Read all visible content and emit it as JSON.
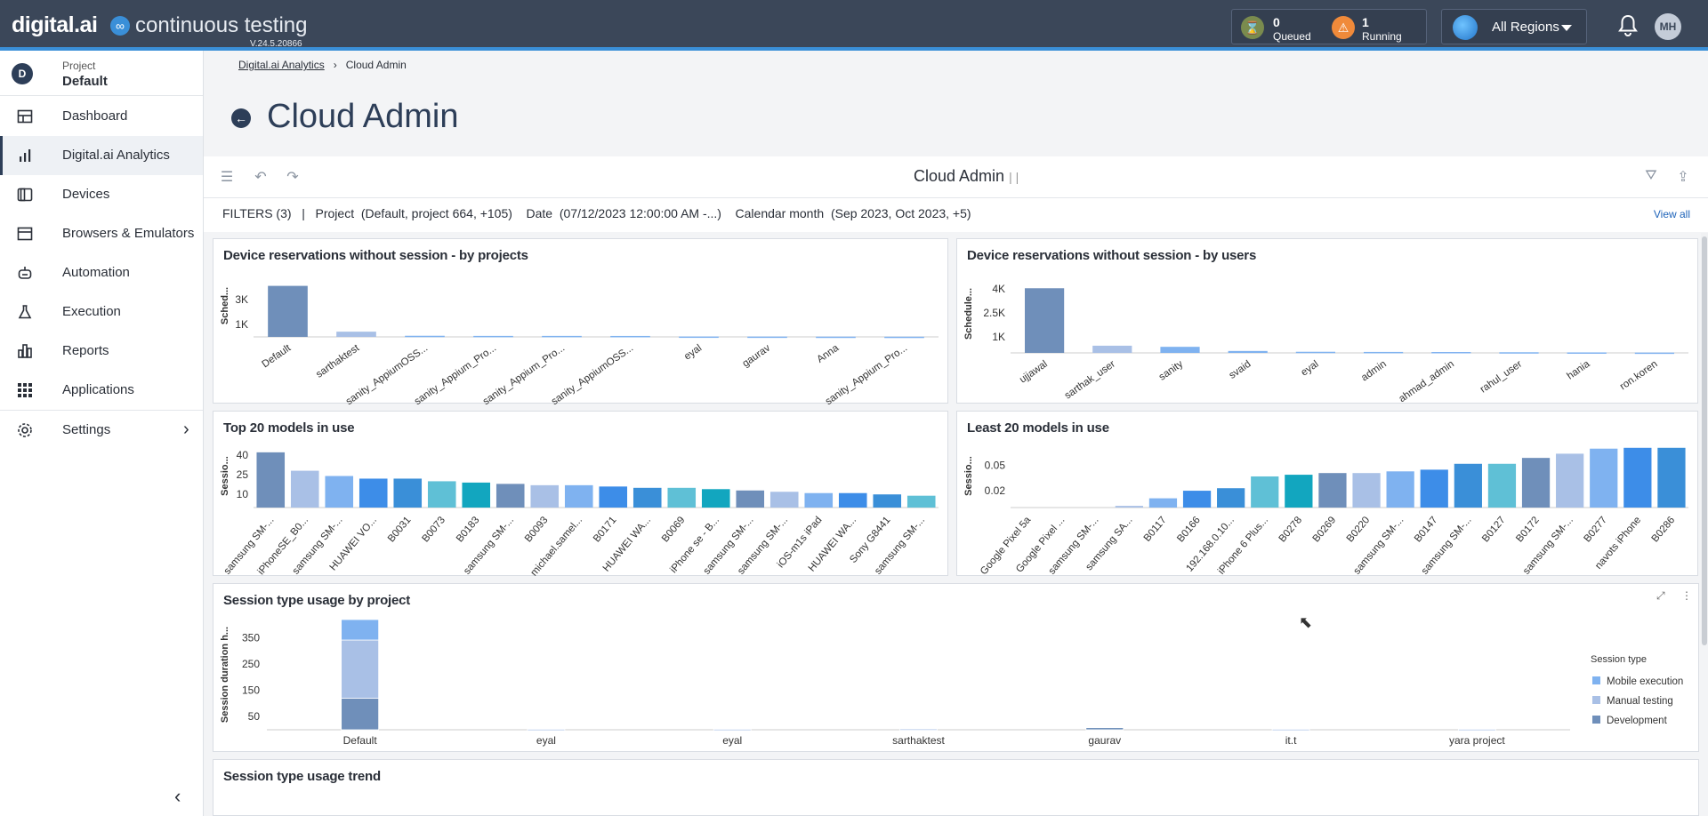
{
  "app": {
    "brand": "digital.ai",
    "product": "continuous testing",
    "version": "V.24.5.20866",
    "queued": {
      "count": "0",
      "label": "Queued"
    },
    "running": {
      "count": "1",
      "label": "Running"
    },
    "region": "All Regions",
    "user_initials": "MH",
    "accent": "#3a8fd8",
    "topbar_color": "#3b4759"
  },
  "sidebar": {
    "project_label": "Project",
    "project_value": "Default",
    "project_badge": "D",
    "items": [
      {
        "label": "Dashboard",
        "icon": "dashboard-icon"
      },
      {
        "label": "Digital.ai Analytics",
        "icon": "bar-chart-icon"
      },
      {
        "label": "Devices",
        "icon": "devices-icon"
      },
      {
        "label": "Browsers & Emulators",
        "icon": "browser-icon"
      },
      {
        "label": "Automation",
        "icon": "robot-icon"
      },
      {
        "label": "Execution",
        "icon": "flask-icon"
      },
      {
        "label": "Reports",
        "icon": "reports-icon"
      },
      {
        "label": "Applications",
        "icon": "grid-icon"
      },
      {
        "label": "Settings",
        "icon": "gear-icon"
      }
    ]
  },
  "breadcrumb": {
    "root": "Digital.ai Analytics",
    "current": "Cloud Admin"
  },
  "page_title": "Cloud Admin",
  "dashboard": {
    "title": "Cloud Admin",
    "title_suffix": "| |",
    "filters": {
      "label": "FILTERS (3)",
      "sep": "|",
      "project_key": "Project",
      "project_val": "(Default, project 664, +105)",
      "date_key": "Date",
      "date_val": "(07/12/2023 12:00:00 AM -...)",
      "cal_key": "Calendar month",
      "cal_val": "(Sep 2023, Oct 2023, +5)",
      "view_all": "View all"
    }
  },
  "chart_data": [
    {
      "type": "bar",
      "title": "Device reservations without session - by projects",
      "ylabel": "Sched...",
      "yticks": [
        "1K",
        "3K"
      ],
      "ylim": [
        0,
        5000
      ],
      "categories": [
        "Default",
        "sarthaktest",
        "sanity_AppiumOSS...",
        "sanity_Appium_Pro...",
        "sanity_Appium_Pro...",
        "sanity_AppiumOSS...",
        "eyal",
        "gaurav",
        "Anna",
        "sanity_Appium_Pro..."
      ],
      "values": [
        4100,
        420,
        90,
        80,
        80,
        75,
        30,
        25,
        20,
        15
      ]
    },
    {
      "type": "bar",
      "title": "Device reservations without session - by users",
      "ylabel": "Schedule...",
      "yticks": [
        "1K",
        "2.5K",
        "4K"
      ],
      "ylim": [
        0,
        4900
      ],
      "categories": [
        "ujjawal",
        "sarthak_user",
        "sanity",
        "svaid",
        "eyal",
        "admin",
        "ahmad_admin",
        "rahul_user",
        "hania",
        "ron.koren"
      ],
      "values": [
        4050,
        450,
        380,
        120,
        70,
        60,
        55,
        40,
        30,
        20
      ]
    },
    {
      "type": "bar",
      "title": "Top 20 models in use",
      "ylabel": "Sessio...",
      "yticks": [
        "10",
        "25",
        "40"
      ],
      "ylim": [
        0,
        48
      ],
      "categories": [
        "samsung SM-...",
        "iPhoneSE_B0...",
        "samsung SM-...",
        "HUAWEI VO...",
        "B0031",
        "B0073",
        "B0183",
        "samsung SM-...",
        "B0093",
        "michael.samel...",
        "B0171",
        "HUAWEI WA...",
        "B0069",
        "iPhone se - B...",
        "samsung SM-...",
        "samsung SM-...",
        "iOS-m1s iPad",
        "HUAWEI WA...",
        "Sony G8441",
        "samsung SM-..."
      ],
      "values": [
        42,
        28,
        24,
        22,
        22,
        20,
        19,
        18,
        17,
        17,
        16,
        15,
        15,
        14,
        13,
        12,
        11,
        11,
        10,
        9
      ]
    },
    {
      "type": "bar",
      "title": "Least 20 models in use",
      "ylabel": "Sessio...",
      "yticks": [
        "0.02",
        "0.05"
      ],
      "ylim": [
        0,
        0.075
      ],
      "categories": [
        "Google Pixel 5a",
        "Google Pixel ...",
        "samsung SM-...",
        "samsung SA...",
        "B0117",
        "B0166",
        "192.168.0.10...",
        "iPhone 6 Plus...",
        "B0278",
        "B0269",
        "B0220",
        "samsung SM-...",
        "B0147",
        "samsung SM-...",
        "B0127",
        "B0172",
        "samsung SM-...",
        "B0277",
        "navots iPhone",
        "B0286"
      ],
      "values": [
        0,
        0,
        0,
        0.002,
        0.011,
        0.02,
        0.023,
        0.037,
        0.039,
        0.041,
        0.041,
        0.043,
        0.045,
        0.052,
        0.052,
        0.059,
        0.064,
        0.07,
        0.071,
        0.071
      ]
    },
    {
      "type": "bar",
      "stacked": true,
      "title": "Session type usage by project",
      "ylabel": "Session duration h...",
      "yticks": [
        "50",
        "150",
        "250",
        "350"
      ],
      "ylim": [
        0,
        420
      ],
      "categories": [
        "Default",
        "eyal",
        "eyal",
        "sarthaktest",
        "gaurav",
        "it.t",
        "yara project"
      ],
      "legend_title": "Session type",
      "series": [
        {
          "name": "Development",
          "color": "#6f8fba",
          "values": [
            120,
            0,
            0,
            0,
            8,
            0,
            0
          ]
        },
        {
          "name": "Manual testing",
          "color": "#a9c0e6",
          "values": [
            222,
            2,
            2,
            3,
            0,
            2,
            2
          ]
        },
        {
          "name": "Mobile execution",
          "color": "#7fb2f0",
          "values": [
            78,
            0,
            0,
            0,
            0,
            0,
            0
          ]
        }
      ]
    }
  ],
  "next_panel_title": "Session type usage trend"
}
